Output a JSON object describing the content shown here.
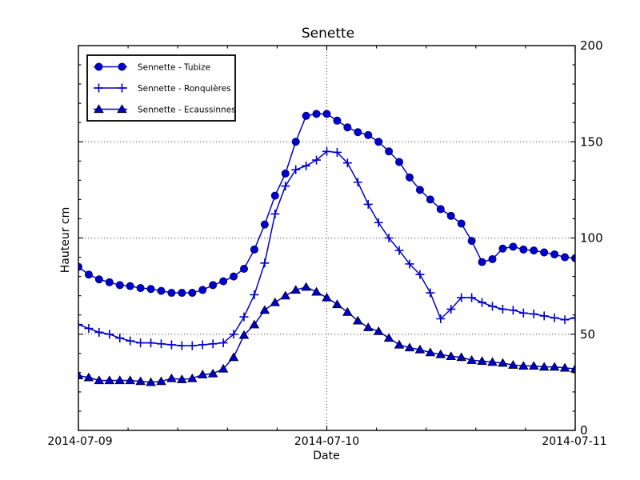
{
  "figure": {
    "background": "#ffffff",
    "accent_color": "#0000cc"
  },
  "chart_data": {
    "type": "line",
    "title": "Senette",
    "xlabel": "Date",
    "ylabel": "Hauteur cm",
    "grid": "dotted",
    "legend_position": "upper-left",
    "x_axis": {
      "tick_labels": [
        "2014-07-09",
        "2014-07-10",
        "2014-07-11"
      ],
      "major_tick_hours": [
        0,
        24,
        48
      ],
      "minor_tick_step_hours": 4.8,
      "gridline_hours": [
        24
      ],
      "range_hours": [
        0,
        48
      ],
      "unit": "hours from 2014-07-09 00:00"
    },
    "y_axis": {
      "tick_labels": [
        "0",
        "50",
        "100",
        "150",
        "200"
      ],
      "major_ticks": [
        0,
        50,
        100,
        150,
        200
      ],
      "minor_tick_step": 10,
      "gridlines": [
        50,
        100,
        150
      ],
      "range": [
        0,
        200
      ],
      "labels_side": "right"
    },
    "series": [
      {
        "name": "Sennette - Tubize",
        "marker": "circle",
        "color": "#0000cc",
        "x_start_hour": 0,
        "x_step_hours": 1,
        "values": [
          85,
          81,
          78.5,
          77,
          75.5,
          75,
          74,
          73.5,
          72.5,
          71.5,
          71.5,
          71.5,
          73,
          75.5,
          77.5,
          80,
          84,
          94,
          107,
          122,
          133.5,
          150,
          163.5,
          164.5,
          164.5,
          161,
          157.5,
          155,
          153.5,
          150,
          145,
          139.5,
          131.5,
          125,
          120,
          115,
          111.5,
          107.5,
          98.5,
          87.5,
          89,
          94.5,
          95.5,
          94,
          93.5,
          92.5,
          91.5,
          90,
          89.5
        ]
      },
      {
        "name": "Sennette - Ronquières",
        "marker": "plus",
        "color": "#0000cc",
        "x_start_hour": 0,
        "x_step_hours": 1,
        "values": [
          55,
          53,
          51,
          50,
          48,
          46.5,
          45.5,
          45.5,
          45,
          44.5,
          44,
          44,
          44.5,
          45,
          45.5,
          50,
          59,
          70.5,
          87,
          112.5,
          127,
          135.5,
          137.5,
          140.5,
          145,
          144.5,
          139,
          129,
          117.5,
          108,
          100,
          93.5,
          86.5,
          81,
          71.5,
          58,
          63,
          69,
          69,
          66.5,
          64.5,
          63,
          62.5,
          61,
          60.5,
          59.5,
          58.5,
          57.5,
          58.5
        ]
      },
      {
        "name": "Sennette - Ecaussinnes",
        "marker": "triangle-up",
        "color": "#0000cc",
        "x_start_hour": 0,
        "x_step_hours": 1,
        "values": [
          28.5,
          27.5,
          26,
          26,
          26,
          26,
          25.5,
          25,
          25.5,
          27,
          26.5,
          27,
          29,
          29.5,
          32,
          38,
          49.5,
          55,
          62.5,
          66.5,
          70,
          73,
          74.5,
          72,
          69,
          65.5,
          61.5,
          57,
          53.5,
          51.5,
          48,
          44.5,
          43,
          42,
          40.5,
          39.5,
          38.5,
          38,
          36.5,
          36,
          35.5,
          35,
          34,
          33.5,
          33.5,
          33,
          33,
          32.5,
          32
        ]
      }
    ]
  }
}
